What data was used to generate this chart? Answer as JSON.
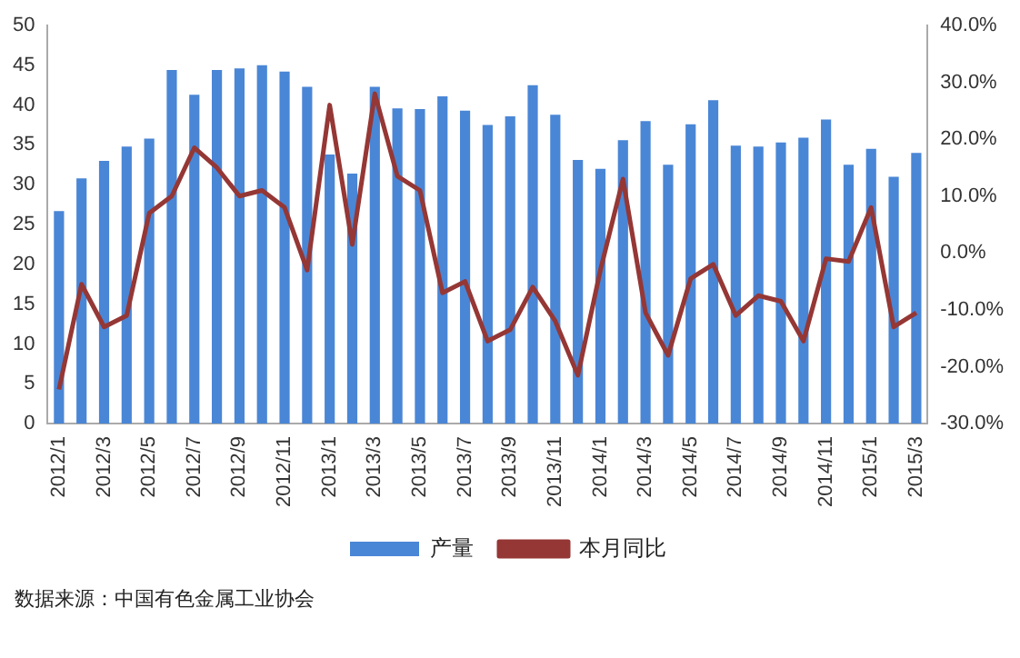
{
  "chart_data": {
    "type": "bar",
    "categories": [
      "2012/1",
      null,
      "2012/3",
      null,
      "2012/5",
      null,
      "2012/7",
      null,
      "2012/9",
      null,
      "2012/11",
      null,
      "2013/1",
      null,
      "2013/3",
      null,
      "2013/5",
      null,
      "2013/7",
      null,
      "2013/9",
      null,
      "2013/11",
      null,
      "2014/1",
      null,
      "2014/3",
      null,
      "2014/5",
      null,
      "2014/7",
      null,
      "2014/9",
      null,
      "2014/11",
      null,
      "2015/1",
      null,
      "2015/3"
    ],
    "series": [
      {
        "name": "产量",
        "color": "#4a86d6",
        "values": [
          26.7,
          30.8,
          33,
          34.8,
          35.8,
          44.4,
          41.3,
          44.4,
          44.6,
          45,
          44.2,
          42.3,
          33.8,
          31.4,
          42.3,
          39.6,
          39.5,
          41.1,
          39.3,
          37.5,
          38.6,
          42.5,
          38.8,
          33.1,
          32,
          35.6,
          38,
          32.5,
          37.6,
          40.6,
          34.9,
          34.8,
          35.3,
          35.9,
          38.2,
          32.5,
          34.5,
          31,
          34
        ]
      },
      {
        "name": "本月同比",
        "type": "line",
        "axis": "y2",
        "color": "#953735",
        "values": [
          -24,
          -5.5,
          -13,
          -11,
          7,
          10,
          18.5,
          15,
          10,
          11,
          8,
          -3,
          26,
          1.5,
          28,
          13.5,
          11,
          -7,
          -5,
          -15.5,
          -13.5,
          -6,
          -12,
          -21.5,
          -3,
          13,
          -10.5,
          -18,
          -4.5,
          -2,
          -11,
          -7.5,
          -8.5,
          -15.5,
          -1,
          -1.5,
          8,
          -13,
          -10.5
        ]
      }
    ],
    "ylim": [
      0,
      50
    ],
    "yticks": [
      0,
      5,
      10,
      15,
      20,
      25,
      30,
      35,
      40,
      45,
      50
    ],
    "y2lim": [
      -30,
      40
    ],
    "y2ticks": [
      {
        "value": -30,
        "label": "-30.0%"
      },
      {
        "value": -20,
        "label": "-20.0%"
      },
      {
        "value": -10,
        "label": "-10.0%"
      },
      {
        "value": 0,
        "label": "0.0%"
      },
      {
        "value": 10,
        "label": "10.0%"
      },
      {
        "value": 20,
        "label": "20.0%"
      },
      {
        "value": 30,
        "label": "30.0%"
      },
      {
        "value": 40,
        "label": "40.0%"
      }
    ],
    "legend": "bottom",
    "grid": false,
    "marker": "none",
    "annotations": [
      "数据来源：中国有色金属工业协会"
    ]
  }
}
